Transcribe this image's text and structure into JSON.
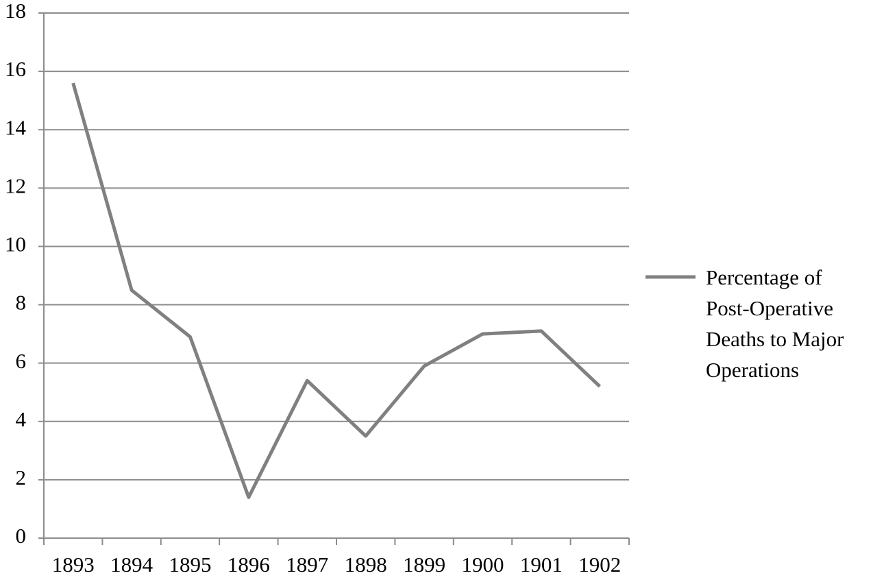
{
  "chart_data": {
    "type": "line",
    "categories": [
      "1893",
      "1894",
      "1895",
      "1896",
      "1897",
      "1898",
      "1899",
      "1900",
      "1901",
      "1902"
    ],
    "series": [
      {
        "name": "Percentage of Post-Operative Deaths to Major Operations",
        "color": "#808080",
        "values": [
          15.6,
          8.5,
          6.9,
          1.4,
          5.4,
          3.5,
          5.9,
          7.0,
          7.1,
          5.2
        ]
      }
    ],
    "ylim": [
      0,
      18
    ],
    "yticks": [
      0,
      2,
      4,
      6,
      8,
      10,
      12,
      14,
      16,
      18
    ],
    "grid": true,
    "legend": "right"
  }
}
